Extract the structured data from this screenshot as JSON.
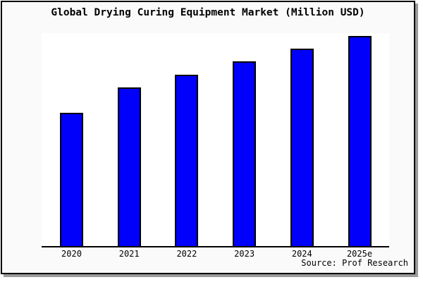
{
  "labels": {
    "title": "Global Drying Curing Equipment Market (Million USD)",
    "source": "Source: Prof Research"
  },
  "chart_data": {
    "type": "bar",
    "title": "Global Drying Curing Equipment Market (Million USD)",
    "categories": [
      "2020",
      "2021",
      "2022",
      "2023",
      "2024",
      "2025e"
    ],
    "values": [
      62.5,
      74.6,
      80.6,
      86.7,
      92.7,
      98.7
    ],
    "value_units": "percent-of-plot-height (y-axis has no visible scale or tick labels)",
    "xlabel": "",
    "ylabel": "",
    "ylim": [
      0,
      100
    ],
    "grid": false,
    "legend": false,
    "annotation": "Source: Prof Research",
    "bar_color": "#0000FB",
    "bar_border_color": "#000000"
  },
  "colors": {
    "canvas_background": "#fafafa",
    "plot_background": "#ffffff",
    "frame_border": "#000000",
    "frame_shadow": "#9a9a9a",
    "text": "#000000"
  }
}
